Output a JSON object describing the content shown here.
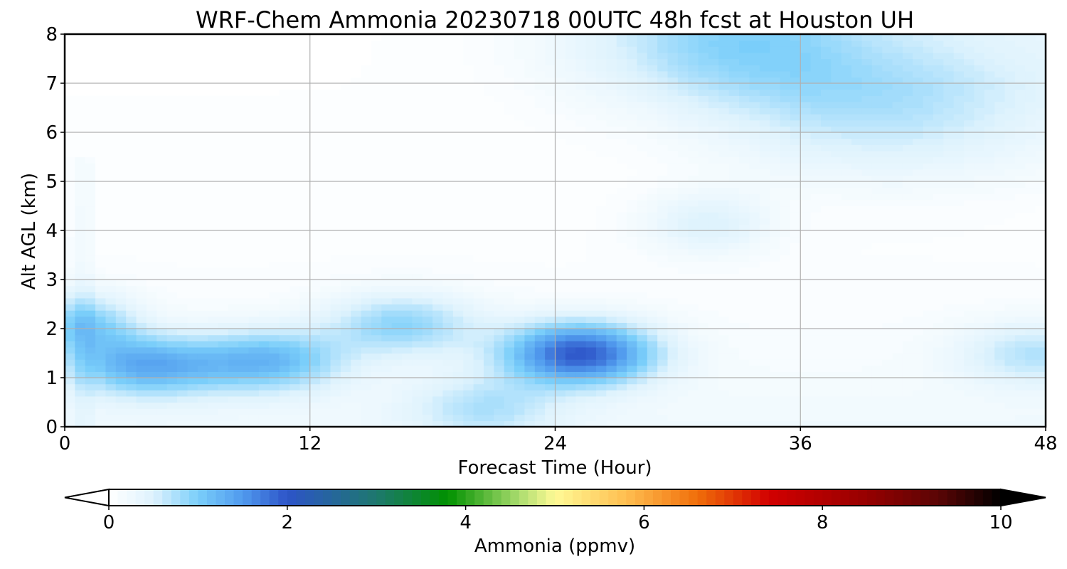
{
  "chart_data": {
    "type": "heatmap",
    "title": "WRF-Chem Ammonia  20230718 00UTC 48h fcst at Houston UH",
    "xlabel": "Forecast Time (Hour)",
    "ylabel": "Alt AGL (km)",
    "xlim": [
      0,
      48
    ],
    "ylim": [
      0,
      8
    ],
    "xticks": [
      0,
      12,
      24,
      36,
      48
    ],
    "yticks": [
      0,
      1,
      2,
      3,
      4,
      5,
      6,
      7,
      8
    ],
    "grid": true,
    "colorbar": {
      "label": "Ammonia  (ppmv)",
      "ticks": [
        0,
        2,
        4,
        6,
        8,
        10
      ],
      "range": [
        0,
        10
      ],
      "extend": "both",
      "orientation": "horizontal"
    },
    "features": [
      {
        "type": "max",
        "x": 25.2,
        "y": 1.5,
        "value": 2.0
      },
      {
        "type": "max",
        "x": 4.0,
        "y": 1.25,
        "value": 1.3
      },
      {
        "type": "max",
        "x": 10.0,
        "y": 1.35,
        "value": 1.2
      },
      {
        "type": "max",
        "x": 16.5,
        "y": 2.1,
        "value": 0.95
      },
      {
        "type": "max",
        "x": 1.0,
        "y": 2.1,
        "value": 1.0
      },
      {
        "type": "max",
        "x": 31.5,
        "y": 7.9,
        "value": 0.9
      },
      {
        "type": "max",
        "x": 31.5,
        "y": 4.15,
        "value": 0.6
      },
      {
        "type": "max",
        "x": 40.5,
        "y": 6.5,
        "value": 0.6
      },
      {
        "type": "max",
        "x": 20.5,
        "y": 0.4,
        "value": 0.7
      },
      {
        "type": "max",
        "x": 47.5,
        "y": 1.5,
        "value": 0.75
      }
    ]
  }
}
